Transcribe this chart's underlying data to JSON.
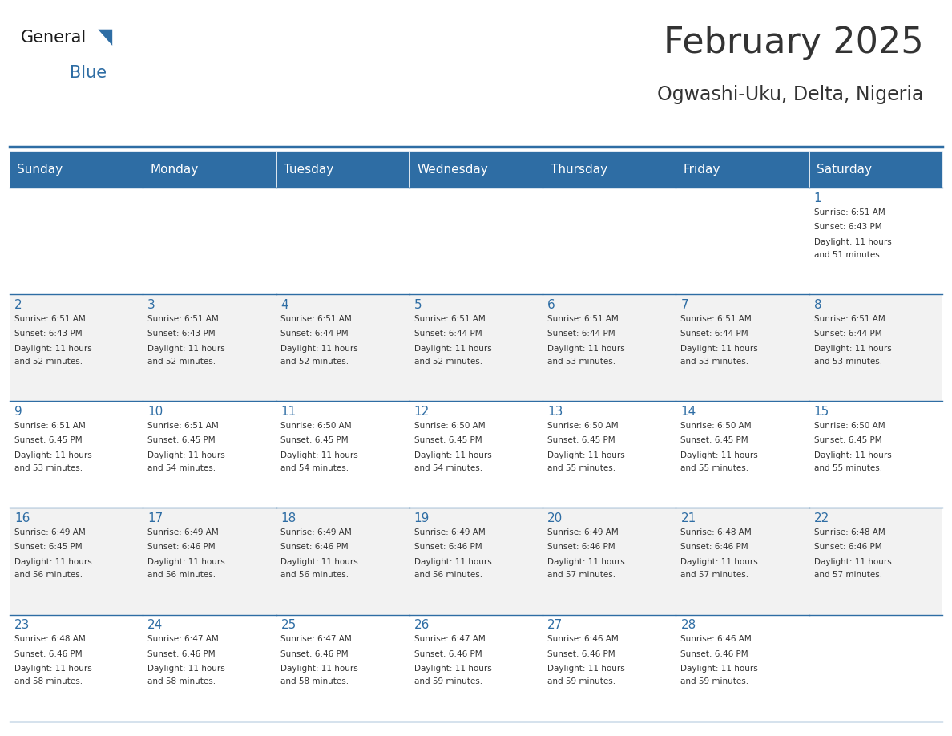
{
  "title": "February 2025",
  "subtitle": "Ogwashi-Uku, Delta, Nigeria",
  "header_bg": "#2E6DA4",
  "header_text_color": "#FFFFFF",
  "cell_bg_white": "#FFFFFF",
  "cell_bg_light": "#F2F2F2",
  "text_color": "#333333",
  "day_number_color": "#2E6DA4",
  "border_color": "#2E6DA4",
  "days_of_week": [
    "Sunday",
    "Monday",
    "Tuesday",
    "Wednesday",
    "Thursday",
    "Friday",
    "Saturday"
  ],
  "calendar_data": [
    [
      {
        "day": null,
        "sunrise": null,
        "sunset": null,
        "daylight": null
      },
      {
        "day": null,
        "sunrise": null,
        "sunset": null,
        "daylight": null
      },
      {
        "day": null,
        "sunrise": null,
        "sunset": null,
        "daylight": null
      },
      {
        "day": null,
        "sunrise": null,
        "sunset": null,
        "daylight": null
      },
      {
        "day": null,
        "sunrise": null,
        "sunset": null,
        "daylight": null
      },
      {
        "day": null,
        "sunrise": null,
        "sunset": null,
        "daylight": null
      },
      {
        "day": 1,
        "sunrise": "6:51 AM",
        "sunset": "6:43 PM",
        "daylight": "11 hours and 51 minutes."
      }
    ],
    [
      {
        "day": 2,
        "sunrise": "6:51 AM",
        "sunset": "6:43 PM",
        "daylight": "11 hours and 52 minutes."
      },
      {
        "day": 3,
        "sunrise": "6:51 AM",
        "sunset": "6:43 PM",
        "daylight": "11 hours and 52 minutes."
      },
      {
        "day": 4,
        "sunrise": "6:51 AM",
        "sunset": "6:44 PM",
        "daylight": "11 hours and 52 minutes."
      },
      {
        "day": 5,
        "sunrise": "6:51 AM",
        "sunset": "6:44 PM",
        "daylight": "11 hours and 52 minutes."
      },
      {
        "day": 6,
        "sunrise": "6:51 AM",
        "sunset": "6:44 PM",
        "daylight": "11 hours and 53 minutes."
      },
      {
        "day": 7,
        "sunrise": "6:51 AM",
        "sunset": "6:44 PM",
        "daylight": "11 hours and 53 minutes."
      },
      {
        "day": 8,
        "sunrise": "6:51 AM",
        "sunset": "6:44 PM",
        "daylight": "11 hours and 53 minutes."
      }
    ],
    [
      {
        "day": 9,
        "sunrise": "6:51 AM",
        "sunset": "6:45 PM",
        "daylight": "11 hours and 53 minutes."
      },
      {
        "day": 10,
        "sunrise": "6:51 AM",
        "sunset": "6:45 PM",
        "daylight": "11 hours and 54 minutes."
      },
      {
        "day": 11,
        "sunrise": "6:50 AM",
        "sunset": "6:45 PM",
        "daylight": "11 hours and 54 minutes."
      },
      {
        "day": 12,
        "sunrise": "6:50 AM",
        "sunset": "6:45 PM",
        "daylight": "11 hours and 54 minutes."
      },
      {
        "day": 13,
        "sunrise": "6:50 AM",
        "sunset": "6:45 PM",
        "daylight": "11 hours and 55 minutes."
      },
      {
        "day": 14,
        "sunrise": "6:50 AM",
        "sunset": "6:45 PM",
        "daylight": "11 hours and 55 minutes."
      },
      {
        "day": 15,
        "sunrise": "6:50 AM",
        "sunset": "6:45 PM",
        "daylight": "11 hours and 55 minutes."
      }
    ],
    [
      {
        "day": 16,
        "sunrise": "6:49 AM",
        "sunset": "6:45 PM",
        "daylight": "11 hours and 56 minutes."
      },
      {
        "day": 17,
        "sunrise": "6:49 AM",
        "sunset": "6:46 PM",
        "daylight": "11 hours and 56 minutes."
      },
      {
        "day": 18,
        "sunrise": "6:49 AM",
        "sunset": "6:46 PM",
        "daylight": "11 hours and 56 minutes."
      },
      {
        "day": 19,
        "sunrise": "6:49 AM",
        "sunset": "6:46 PM",
        "daylight": "11 hours and 56 minutes."
      },
      {
        "day": 20,
        "sunrise": "6:49 AM",
        "sunset": "6:46 PM",
        "daylight": "11 hours and 57 minutes."
      },
      {
        "day": 21,
        "sunrise": "6:48 AM",
        "sunset": "6:46 PM",
        "daylight": "11 hours and 57 minutes."
      },
      {
        "day": 22,
        "sunrise": "6:48 AM",
        "sunset": "6:46 PM",
        "daylight": "11 hours and 57 minutes."
      }
    ],
    [
      {
        "day": 23,
        "sunrise": "6:48 AM",
        "sunset": "6:46 PM",
        "daylight": "11 hours and 58 minutes."
      },
      {
        "day": 24,
        "sunrise": "6:47 AM",
        "sunset": "6:46 PM",
        "daylight": "11 hours and 58 minutes."
      },
      {
        "day": 25,
        "sunrise": "6:47 AM",
        "sunset": "6:46 PM",
        "daylight": "11 hours and 58 minutes."
      },
      {
        "day": 26,
        "sunrise": "6:47 AM",
        "sunset": "6:46 PM",
        "daylight": "11 hours and 59 minutes."
      },
      {
        "day": 27,
        "sunrise": "6:46 AM",
        "sunset": "6:46 PM",
        "daylight": "11 hours and 59 minutes."
      },
      {
        "day": 28,
        "sunrise": "6:46 AM",
        "sunset": "6:46 PM",
        "daylight": "11 hours and 59 minutes."
      },
      {
        "day": null,
        "sunrise": null,
        "sunset": null,
        "daylight": null
      }
    ]
  ]
}
